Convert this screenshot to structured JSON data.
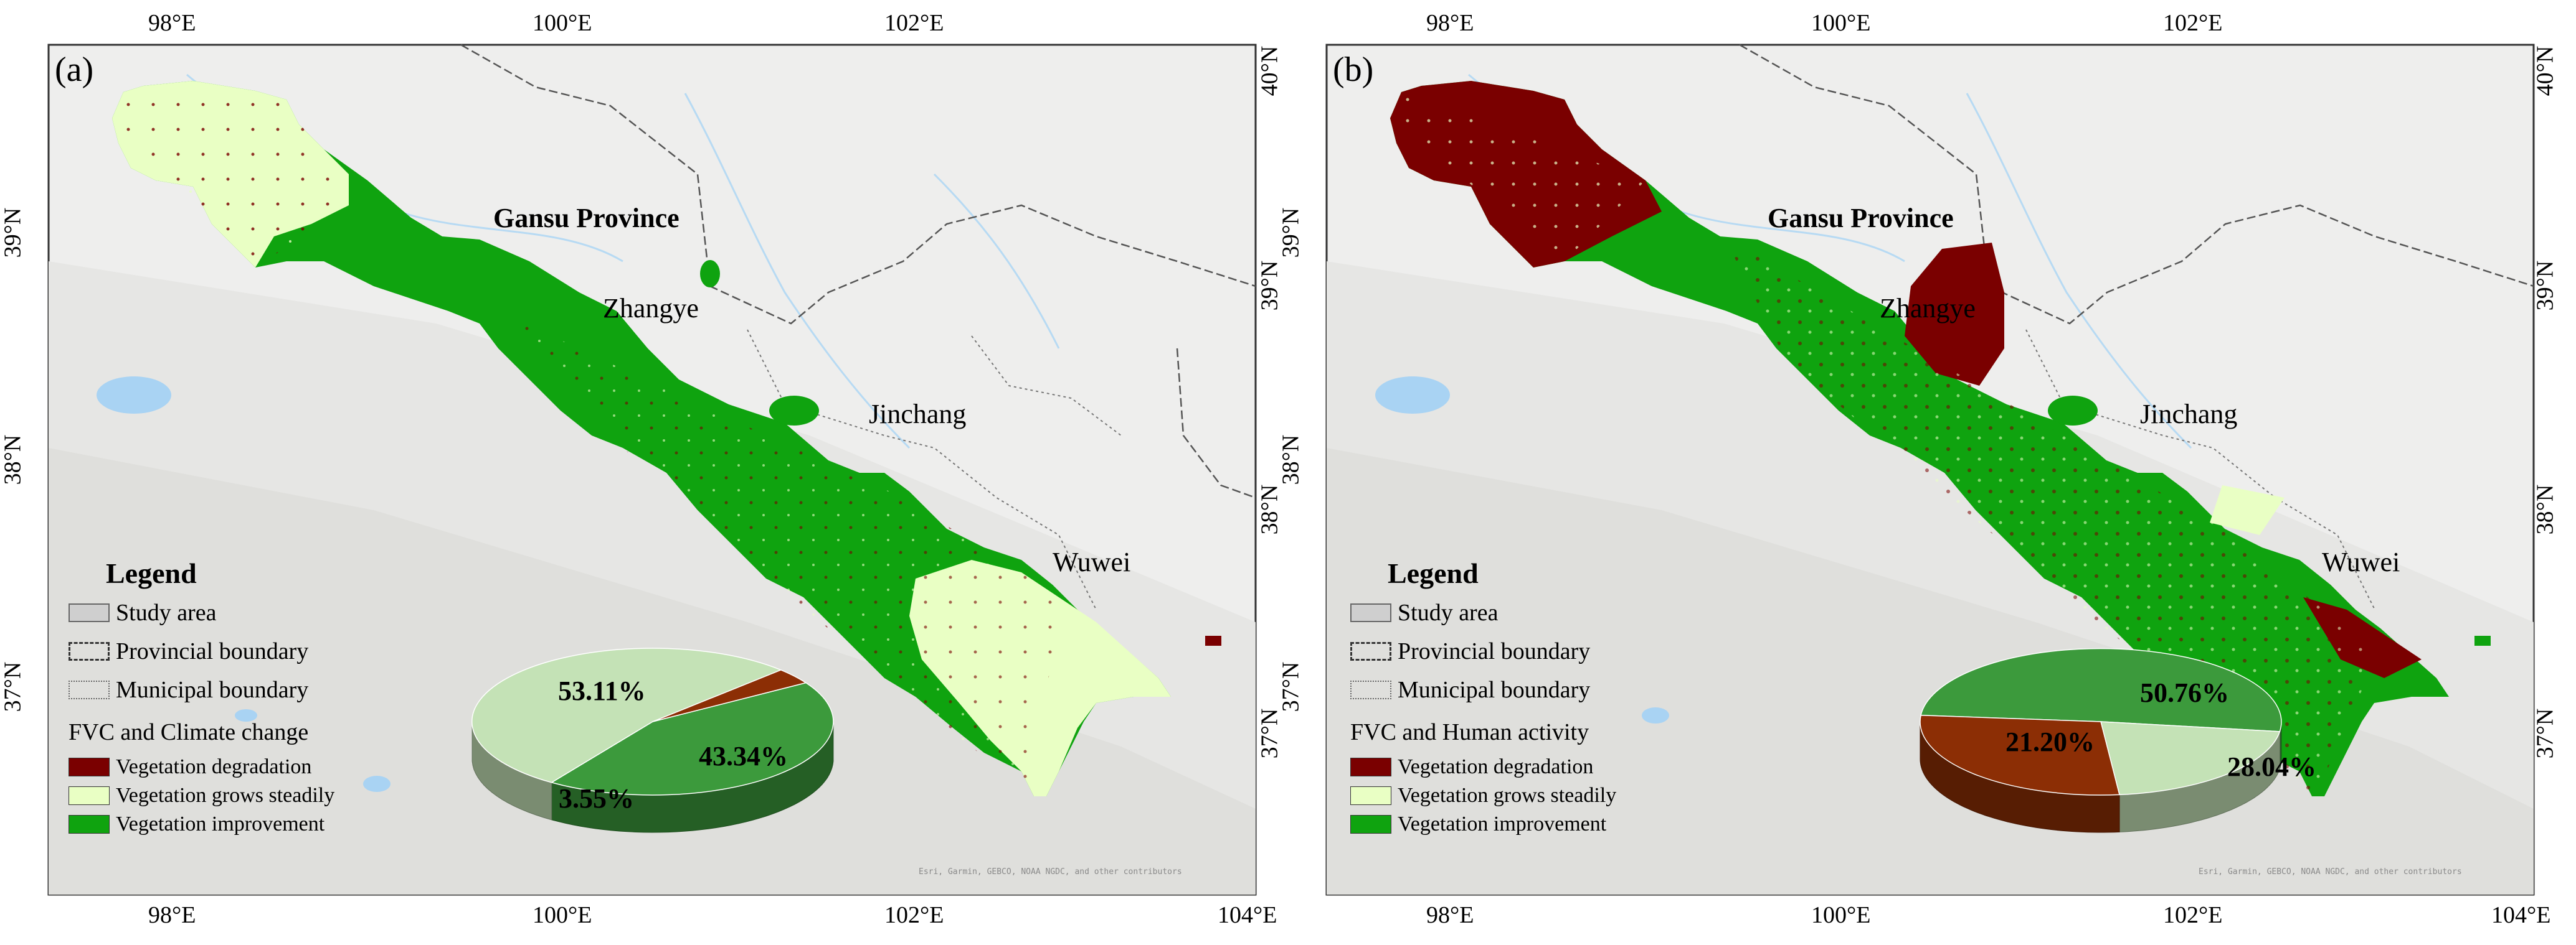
{
  "colors": {
    "degradation": "#7a0000",
    "steady": "#e9ffc4",
    "improvement": "#0fa30f",
    "pie_improvement": "#3c9a3c",
    "pie_steady": "#c4e2b6",
    "pie_degradation": "#8c2e05",
    "study_area": "#cfcfcf",
    "water": "#a9d3f3"
  },
  "axes": {
    "top_lon": [
      "98°E",
      "100°E",
      "102°E"
    ],
    "bottom_lon": [
      "98°E",
      "100°E",
      "102°E",
      "104°E"
    ],
    "left_lat": [
      "39°N",
      "38°N",
      "37°N"
    ],
    "right_lat": [
      "40°N",
      "39°N",
      "38°N",
      "37°N"
    ]
  },
  "places": {
    "province": "Gansu Province",
    "city1": "Zhangye",
    "city2": "Jinchang",
    "city3": "Wuwei"
  },
  "attribution": "Esri, Garmin, GEBCO, NOAA NGDC, and other contributors",
  "panel_a": {
    "label": "(a)",
    "legend": {
      "title": "Legend",
      "study_area": "Study area",
      "provincial": "Provincial boundary",
      "municipal": "Municipal boundary",
      "section": "FVC and Climate change",
      "degradation": "Vegetation degradation",
      "steady": "Vegetation grows steadily",
      "improvement": "Vegetation improvement"
    },
    "pie": [
      {
        "label": "Vegetation improvement",
        "value": 43.34,
        "text": "43.34%"
      },
      {
        "label": "Vegetation grows steadily",
        "value": 53.11,
        "text": "53.11%"
      },
      {
        "label": "Vegetation degradation",
        "value": 3.55,
        "text": "3.55%"
      }
    ]
  },
  "panel_b": {
    "label": "(b)",
    "legend": {
      "title": "Legend",
      "study_area": "Study area",
      "provincial": "Provincial boundary",
      "municipal": "Municipal boundary",
      "section": "FVC and Human activity",
      "degradation": "Vegetation degradation",
      "steady": "Vegetation grows steadily",
      "improvement": "Vegetation improvement"
    },
    "pie": [
      {
        "label": "Vegetation improvement",
        "value": 50.76,
        "text": "50.76%"
      },
      {
        "label": "Vegetation grows steadily",
        "value": 21.2,
        "text": "21.20%"
      },
      {
        "label": "Vegetation degradation",
        "value": 28.04,
        "text": "28.04%"
      }
    ]
  }
}
